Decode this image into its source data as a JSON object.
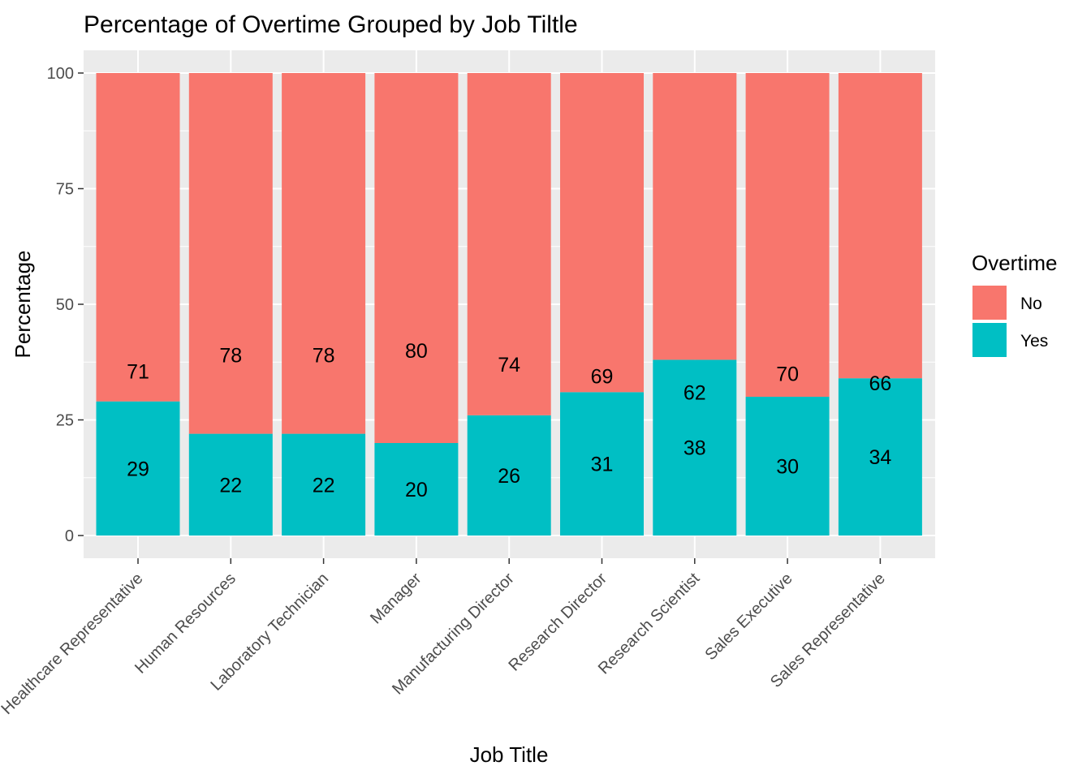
{
  "chart_data": {
    "type": "bar",
    "stacked": true,
    "title": "Percentage of Overtime Grouped by Job Tiltle",
    "xlabel": "Job Title",
    "ylabel": "Percentage",
    "ylim": [
      0,
      105
    ],
    "yticks": [
      0,
      25,
      50,
      75,
      100
    ],
    "grid": true,
    "categories": [
      "Healthcare Representative",
      "Human Resources",
      "Laboratory Technician",
      "Manager",
      "Manufacturing Director",
      "Research Director",
      "Research Scientist",
      "Sales Executive",
      "Sales Representative"
    ],
    "series": [
      {
        "name": "Yes",
        "color": "#00BFC4",
        "values": [
          29,
          22,
          22,
          20,
          26,
          31,
          38,
          30,
          34
        ]
      },
      {
        "name": "No",
        "color": "#F8766D",
        "values": [
          71,
          78,
          78,
          80,
          74,
          69,
          62,
          70,
          66
        ]
      }
    ],
    "legend": {
      "title": "Overtime",
      "placement": "right",
      "entries": [
        {
          "label": "No",
          "color": "#F8766D"
        },
        {
          "label": "Yes",
          "color": "#00BFC4"
        }
      ]
    }
  }
}
